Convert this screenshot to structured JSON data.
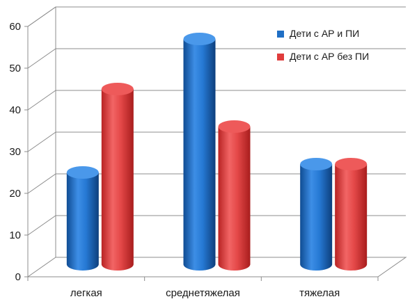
{
  "chart_data": {
    "type": "bar",
    "categories": [
      "легкая",
      "среднетяжелая",
      "тяжелая"
    ],
    "series": [
      {
        "name": "Дети с АР и ПИ",
        "values": [
          22,
          54,
          24
        ],
        "color": "#1f6fc5"
      },
      {
        "name": "Дети с АР без ПИ",
        "values": [
          42,
          33,
          24
        ],
        "color": "#e03c3c"
      }
    ],
    "ylim": [
      0,
      60
    ],
    "yticks": [
      0,
      10,
      20,
      30,
      40,
      50,
      60
    ],
    "grid": true,
    "legend": "top-right",
    "style": "3d-cylinder"
  }
}
